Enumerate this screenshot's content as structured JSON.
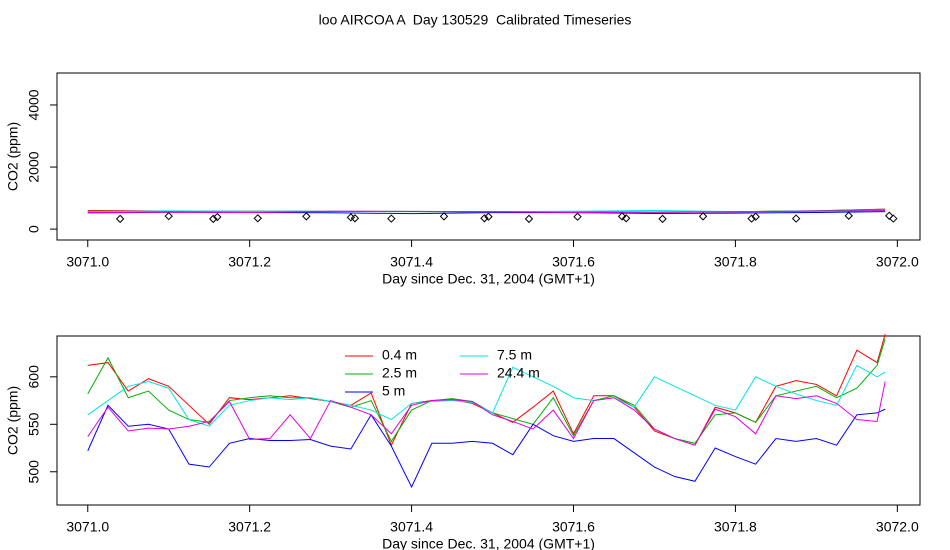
{
  "chart_data": [
    {
      "type": "line",
      "title": "loo AIRCOA A  Day 130529  Calibrated Timeseries",
      "xlabel": "Day since Dec. 31, 2004 (GMT+1)",
      "ylabel": "CO2 (ppm)",
      "xlim": [
        3070.962,
        3072.028
      ],
      "ylim": [
        -350,
        5030
      ],
      "xticks": [
        {
          "value": 3071,
          "label": "3071.0"
        },
        3071.2,
        3071.4,
        3071.6,
        3071.8,
        {
          "value": 3072,
          "label": "3072.0"
        }
      ],
      "yticks": [
        0,
        2000,
        4000
      ],
      "x": [
        3071.0,
        3071.1,
        3071.2,
        3071.3,
        3071.4,
        3071.5,
        3071.6,
        3071.7,
        3071.8,
        3071.9,
        3071.985
      ],
      "series": [
        {
          "color": "#ff0000",
          "values": [
            600,
            585,
            576,
            574,
            572,
            562,
            560,
            543,
            562,
            592,
            645
          ]
        },
        {
          "color": "#00b000",
          "values": [
            582,
            565,
            578,
            574,
            565,
            562,
            560,
            545,
            562,
            590,
            640
          ]
        },
        {
          "color": "#0000ff",
          "values": [
            522,
            545,
            535,
            527,
            500,
            530,
            532,
            505,
            516,
            535,
            566
          ]
        },
        {
          "color": "#00e5e5",
          "values": [
            560,
            588,
            575,
            574,
            572,
            562,
            578,
            600,
            565,
            575,
            605
          ]
        },
        {
          "color": "#e000e0",
          "values": [
            537,
            545,
            534,
            575,
            570,
            560,
            535,
            545,
            558,
            580,
            595
          ]
        },
        {
          "color": "#000000",
          "marker": "diamond",
          "x": [
            3071.04,
            3071.1,
            3071.155,
            3071.16,
            3071.21,
            3071.27,
            3071.325,
            3071.33,
            3071.375,
            3071.44,
            3071.49,
            3071.495,
            3071.545,
            3071.605,
            3071.66,
            3071.665,
            3071.71,
            3071.76,
            3071.82,
            3071.825,
            3071.875,
            3071.94,
            3071.99,
            3071.995
          ],
          "values": [
            330,
            420,
            330,
            390,
            350,
            410,
            380,
            350,
            340,
            410,
            350,
            400,
            330,
            400,
            410,
            350,
            330,
            410,
            340,
            400,
            340,
            430,
            430,
            340
          ]
        }
      ]
    },
    {
      "type": "line",
      "xlabel": "Day since Dec. 31, 2004 (GMT+1)",
      "ylabel": "CO2 (ppm)",
      "xlim": [
        3070.962,
        3072.028
      ],
      "ylim": [
        465,
        643
      ],
      "xticks": [
        {
          "value": 3071,
          "label": "3071.0"
        },
        3071.2,
        3071.4,
        3071.6,
        3071.8,
        {
          "value": 3072,
          "label": "3072.0"
        }
      ],
      "yticks": [
        500,
        550,
        600
      ],
      "legend": "top",
      "x": [
        3071.0,
        3071.025,
        3071.05,
        3071.075,
        3071.1,
        3071.125,
        3071.15,
        3071.175,
        3071.2,
        3071.225,
        3071.25,
        3071.275,
        3071.3,
        3071.325,
        3071.35,
        3071.375,
        3071.4,
        3071.425,
        3071.45,
        3071.475,
        3071.5,
        3071.525,
        3071.55,
        3071.575,
        3071.6,
        3071.625,
        3071.65,
        3071.675,
        3071.7,
        3071.725,
        3071.75,
        3071.775,
        3071.8,
        3071.825,
        3071.85,
        3071.875,
        3071.9,
        3071.925,
        3071.95,
        3071.975,
        3071.985
      ],
      "series": [
        {
          "name": "0.4 m",
          "color": "#ff0000",
          "values": [
            612,
            615,
            585,
            598,
            590,
            570,
            550,
            578,
            576,
            578,
            580,
            577,
            574,
            570,
            583,
            528,
            572,
            575,
            576,
            572,
            562,
            552,
            568,
            585,
            540,
            580,
            580,
            568,
            543,
            535,
            528,
            568,
            562,
            552,
            590,
            596,
            592,
            580,
            628,
            615,
            645
          ]
        },
        {
          "name": "2.5 m",
          "color": "#00b000",
          "values": [
            582,
            620,
            578,
            585,
            565,
            555,
            552,
            575,
            578,
            580,
            578,
            578,
            574,
            568,
            575,
            532,
            565,
            575,
            577,
            574,
            562,
            556,
            550,
            578,
            538,
            575,
            580,
            570,
            545,
            535,
            530,
            560,
            562,
            552,
            580,
            585,
            590,
            578,
            588,
            612,
            640
          ]
        },
        {
          "name": "5 m",
          "color": "#0000ff",
          "values": [
            522,
            570,
            548,
            550,
            545,
            508,
            505,
            530,
            535,
            533,
            533,
            534,
            527,
            524,
            560,
            527,
            484,
            530,
            530,
            532,
            530,
            518,
            550,
            538,
            532,
            535,
            535,
            520,
            505,
            495,
            490,
            525,
            516,
            508,
            535,
            532,
            535,
            528,
            560,
            562,
            566
          ]
        },
        {
          "name": "7.5 m",
          "color": "#00e5e5",
          "values": [
            560,
            575,
            590,
            595,
            588,
            555,
            548,
            570,
            575,
            578,
            576,
            578,
            574,
            570,
            565,
            555,
            572,
            574,
            575,
            573,
            562,
            610,
            600,
            590,
            578,
            575,
            578,
            568,
            600,
            590,
            580,
            570,
            565,
            600,
            590,
            582,
            575,
            570,
            612,
            600,
            605
          ]
        },
        {
          "name": "24.4 m",
          "color": "#e000e0",
          "values": [
            537,
            568,
            543,
            546,
            545,
            548,
            553,
            574,
            534,
            535,
            560,
            535,
            575,
            568,
            560,
            540,
            570,
            575,
            576,
            574,
            560,
            553,
            545,
            565,
            535,
            575,
            578,
            565,
            545,
            535,
            528,
            566,
            558,
            540,
            580,
            577,
            580,
            572,
            555,
            553,
            595
          ]
        }
      ]
    }
  ]
}
